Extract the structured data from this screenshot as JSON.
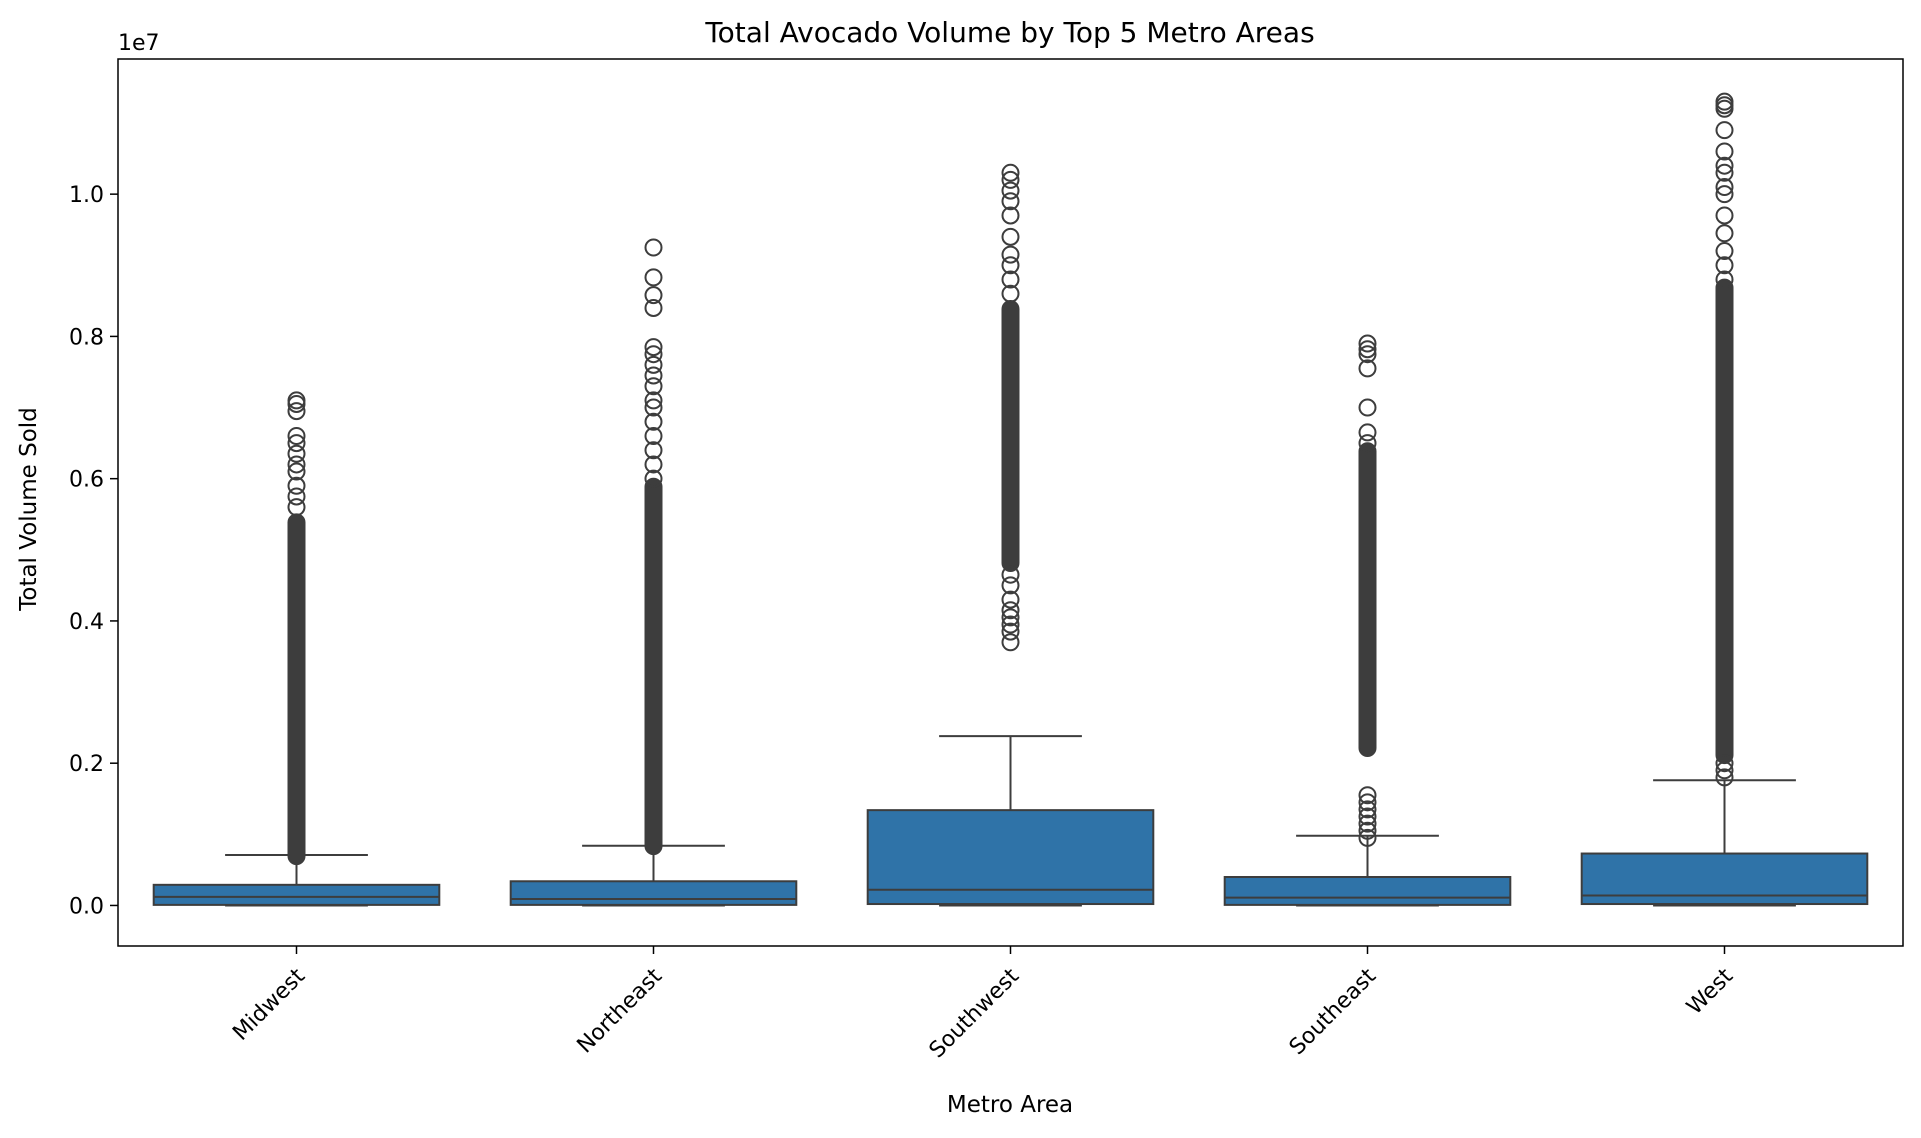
{
  "chart_data": {
    "type": "box",
    "title": "Total Avocado Volume by Top 5 Metro Areas",
    "xlabel": "Metro Area",
    "ylabel": "Total Volume Sold",
    "y_offset_label": "1e7",
    "y_scale": 10000000,
    "ylim": [
      -0.057,
      1.19
    ],
    "yticks": [
      0.0,
      0.2,
      0.4,
      0.6,
      0.8,
      1.0
    ],
    "ytick_labels": [
      "0.0",
      "0.2",
      "0.4",
      "0.6",
      "0.8",
      "1.0"
    ],
    "grid": false,
    "box_color": "#2f73a8",
    "line_color": "#3d3d3d",
    "categories": [
      "Midwest",
      "Northeast",
      "Southwest",
      "Southeast",
      "West"
    ],
    "boxes": [
      {
        "name": "Midwest",
        "min": 0.0,
        "q1": 0.0008,
        "median": 0.012,
        "q3": 0.029,
        "whisker_high": 0.071,
        "outlier_band": [
          0.068,
          0.54
        ],
        "outliers": [
          0.56,
          0.575,
          0.59,
          0.61,
          0.62,
          0.635,
          0.65,
          0.66,
          0.695,
          0.705,
          0.71
        ]
      },
      {
        "name": "Northeast",
        "min": 0.0,
        "q1": 0.0008,
        "median": 0.009,
        "q3": 0.034,
        "whisker_high": 0.084,
        "outlier_band": [
          0.082,
          0.59
        ],
        "outliers": [
          0.6,
          0.62,
          0.64,
          0.66,
          0.68,
          0.7,
          0.71,
          0.73,
          0.745,
          0.76,
          0.775,
          0.785,
          0.84,
          0.858,
          0.883,
          0.925
        ]
      },
      {
        "name": "Southwest",
        "min": 0.0,
        "q1": 0.002,
        "median": 0.022,
        "q3": 0.134,
        "whisker_high": 0.238,
        "outlier_band": [
          0.48,
          0.84
        ],
        "outliers": [
          0.37,
          0.385,
          0.395,
          0.405,
          0.415,
          0.43,
          0.45,
          0.465,
          0.86,
          0.88,
          0.9,
          0.915,
          0.94,
          0.97,
          0.99,
          1.005,
          1.02,
          1.03
        ]
      },
      {
        "name": "Southeast",
        "min": 0.0,
        "q1": 0.0008,
        "median": 0.011,
        "q3": 0.04,
        "whisker_high": 0.098,
        "outlier_band": [
          0.22,
          0.64
        ],
        "outliers": [
          0.095,
          0.105,
          0.115,
          0.125,
          0.135,
          0.145,
          0.155,
          0.65,
          0.665,
          0.7,
          0.755,
          0.775,
          0.782,
          0.79
        ]
      },
      {
        "name": "West",
        "min": 0.0,
        "q1": 0.002,
        "median": 0.014,
        "q3": 0.073,
        "whisker_high": 0.176,
        "outlier_band": [
          0.21,
          0.87
        ],
        "outliers": [
          0.18,
          0.19,
          0.2,
          0.88,
          0.9,
          0.92,
          0.945,
          0.97,
          1.0,
          1.01,
          1.03,
          1.04,
          1.06,
          1.09,
          1.12,
          1.125,
          1.13
        ]
      }
    ]
  }
}
